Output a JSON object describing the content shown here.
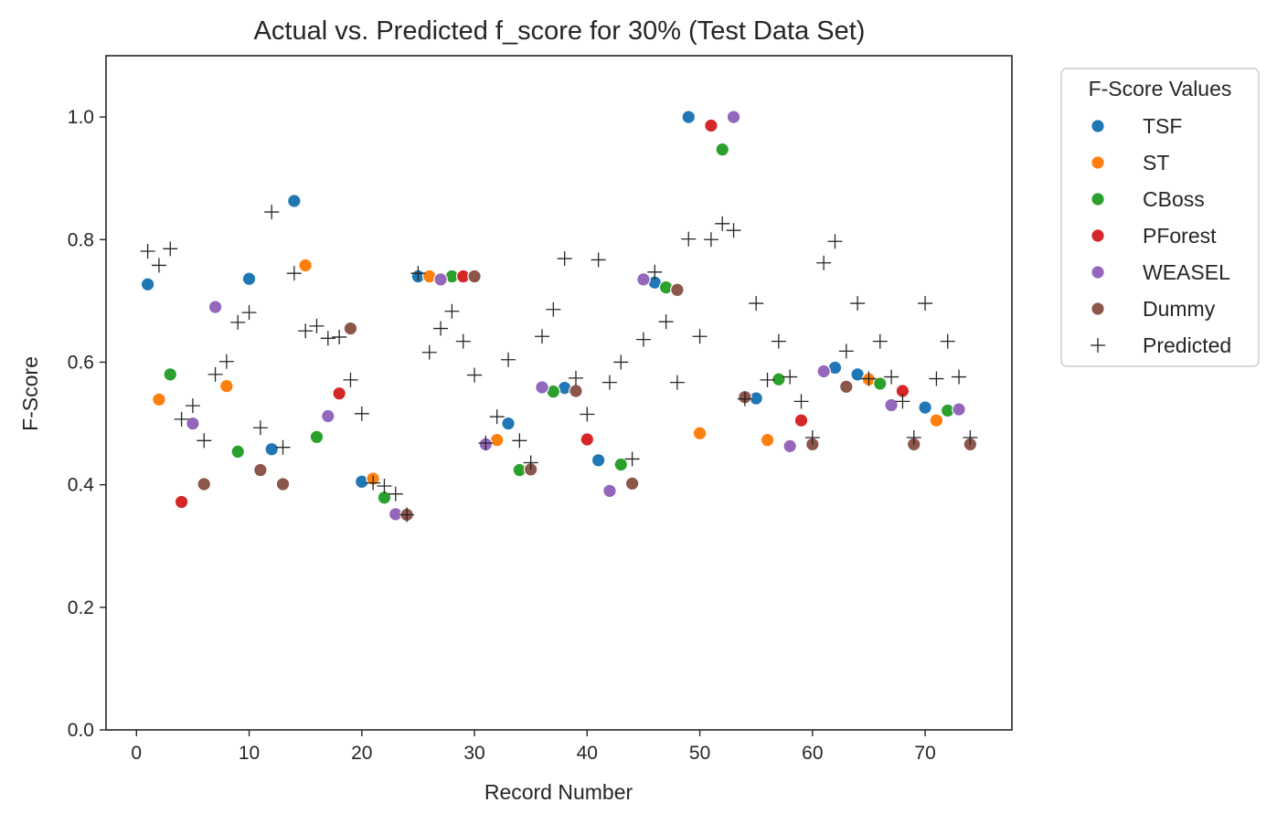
{
  "chart_data": {
    "type": "scatter",
    "title": "Actual vs. Predicted f_score for 30% (Test Data Set)",
    "xlabel": "Record Number",
    "ylabel": "F-Score",
    "xlim": [
      -2.7,
      77.7
    ],
    "ylim": [
      0,
      1.1
    ],
    "xticks": [
      "0",
      "10",
      "20",
      "30",
      "40",
      "50",
      "60",
      "70"
    ],
    "xtick_values": [
      0,
      10,
      20,
      30,
      40,
      50,
      60,
      70
    ],
    "yticks": [
      "0.0",
      "0.2",
      "0.4",
      "0.6",
      "0.8",
      "1.0"
    ],
    "ytick_values": [
      0,
      0.2,
      0.4,
      0.6,
      0.8,
      1.0
    ],
    "grid": false,
    "legend": {
      "title": "F-Score Values",
      "placement": "outside-right-top"
    },
    "series": [
      {
        "name": "TSF",
        "color": "#1f77b4",
        "marker": "circle",
        "points": [
          [
            1,
            0.727
          ],
          [
            10,
            0.736
          ],
          [
            12,
            0.458
          ],
          [
            14,
            0.863
          ],
          [
            20,
            0.405
          ],
          [
            25,
            0.74
          ],
          [
            33,
            0.5
          ],
          [
            38,
            0.558
          ],
          [
            41,
            0.44
          ],
          [
            46,
            0.73
          ],
          [
            49,
            1.0
          ],
          [
            55,
            0.541
          ],
          [
            62,
            0.591
          ],
          [
            64,
            0.58
          ],
          [
            70,
            0.526
          ]
        ]
      },
      {
        "name": "ST",
        "color": "#ff7f0e",
        "marker": "circle",
        "points": [
          [
            2,
            0.539
          ],
          [
            8,
            0.561
          ],
          [
            15,
            0.758
          ],
          [
            21,
            0.41
          ],
          [
            26,
            0.74
          ],
          [
            32,
            0.473
          ],
          [
            50,
            0.484
          ],
          [
            56,
            0.473
          ],
          [
            65,
            0.572
          ],
          [
            71,
            0.505
          ]
        ]
      },
      {
        "name": "CBoss",
        "color": "#2ca02c",
        "marker": "circle",
        "points": [
          [
            3,
            0.58
          ],
          [
            9,
            0.454
          ],
          [
            16,
            0.478
          ],
          [
            22,
            0.379
          ],
          [
            28,
            0.74
          ],
          [
            34,
            0.424
          ],
          [
            37,
            0.552
          ],
          [
            43,
            0.433
          ],
          [
            47,
            0.722
          ],
          [
            52,
            0.947
          ],
          [
            57,
            0.572
          ],
          [
            66,
            0.565
          ],
          [
            72,
            0.521
          ]
        ]
      },
      {
        "name": "PForest",
        "color": "#d62728",
        "marker": "circle",
        "points": [
          [
            4,
            0.372
          ],
          [
            18,
            0.549
          ],
          [
            29,
            0.74
          ],
          [
            40,
            0.474
          ],
          [
            51,
            0.986
          ],
          [
            59,
            0.505
          ],
          [
            68,
            0.553
          ]
        ]
      },
      {
        "name": "WEASEL",
        "color": "#9467bd",
        "marker": "circle",
        "points": [
          [
            5,
            0.5
          ],
          [
            7,
            0.69
          ],
          [
            17,
            0.512
          ],
          [
            23,
            0.352
          ],
          [
            27,
            0.735
          ],
          [
            31,
            0.466
          ],
          [
            36,
            0.559
          ],
          [
            42,
            0.39
          ],
          [
            45,
            0.735
          ],
          [
            53,
            1.0
          ],
          [
            58,
            0.463
          ],
          [
            61,
            0.585
          ],
          [
            67,
            0.53
          ],
          [
            73,
            0.523
          ]
        ]
      },
      {
        "name": "Dummy",
        "color": "#8c564b",
        "marker": "circle",
        "points": [
          [
            6,
            0.401
          ],
          [
            11,
            0.424
          ],
          [
            13,
            0.401
          ],
          [
            19,
            0.655
          ],
          [
            24,
            0.351
          ],
          [
            30,
            0.74
          ],
          [
            35,
            0.425
          ],
          [
            39,
            0.553
          ],
          [
            44,
            0.402
          ],
          [
            48,
            0.718
          ],
          [
            54,
            0.543
          ],
          [
            60,
            0.466
          ],
          [
            63,
            0.56
          ],
          [
            69,
            0.466
          ],
          [
            74,
            0.466
          ]
        ]
      },
      {
        "name": "Predicted",
        "color": "#262626",
        "marker": "plus",
        "points": [
          [
            1,
            0.781
          ],
          [
            2,
            0.758
          ],
          [
            3,
            0.785
          ],
          [
            4,
            0.507
          ],
          [
            5,
            0.529
          ],
          [
            6,
            0.472
          ],
          [
            7,
            0.58
          ],
          [
            8,
            0.601
          ],
          [
            9,
            0.665
          ],
          [
            10,
            0.681
          ],
          [
            11,
            0.493
          ],
          [
            12,
            0.845
          ],
          [
            13,
            0.461
          ],
          [
            14,
            0.745
          ],
          [
            15,
            0.651
          ],
          [
            16,
            0.659
          ],
          [
            17,
            0.639
          ],
          [
            18,
            0.641
          ],
          [
            19,
            0.571
          ],
          [
            20,
            0.516
          ],
          [
            21,
            0.403
          ],
          [
            22,
            0.398
          ],
          [
            23,
            0.385
          ],
          [
            24,
            0.351
          ],
          [
            25,
            0.745
          ],
          [
            26,
            0.616
          ],
          [
            27,
            0.655
          ],
          [
            28,
            0.683
          ],
          [
            29,
            0.634
          ],
          [
            30,
            0.579
          ],
          [
            31,
            0.468
          ],
          [
            32,
            0.511
          ],
          [
            33,
            0.604
          ],
          [
            34,
            0.472
          ],
          [
            35,
            0.436
          ],
          [
            36,
            0.642
          ],
          [
            37,
            0.686
          ],
          [
            38,
            0.769
          ],
          [
            39,
            0.574
          ],
          [
            40,
            0.515
          ],
          [
            41,
            0.767
          ],
          [
            42,
            0.567
          ],
          [
            43,
            0.6
          ],
          [
            44,
            0.442
          ],
          [
            45,
            0.637
          ],
          [
            46,
            0.747
          ],
          [
            47,
            0.666
          ],
          [
            48,
            0.567
          ],
          [
            49,
            0.801
          ],
          [
            50,
            0.642
          ],
          [
            51,
            0.8
          ],
          [
            52,
            0.826
          ],
          [
            53,
            0.815
          ],
          [
            54,
            0.54
          ],
          [
            55,
            0.696
          ],
          [
            56,
            0.571
          ],
          [
            57,
            0.634
          ],
          [
            58,
            0.576
          ],
          [
            59,
            0.536
          ],
          [
            60,
            0.477
          ],
          [
            61,
            0.762
          ],
          [
            62,
            0.797
          ],
          [
            63,
            0.618
          ],
          [
            64,
            0.696
          ],
          [
            65,
            0.573
          ],
          [
            66,
            0.634
          ],
          [
            67,
            0.576
          ],
          [
            68,
            0.536
          ],
          [
            69,
            0.477
          ],
          [
            70,
            0.696
          ],
          [
            71,
            0.573
          ],
          [
            72,
            0.634
          ],
          [
            73,
            0.576
          ],
          [
            74,
            0.477
          ]
        ]
      }
    ]
  }
}
